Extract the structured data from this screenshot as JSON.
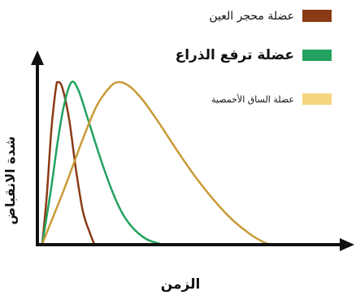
{
  "chart_data": {
    "type": "line",
    "xlabel": "الزمن",
    "ylabel": "شدة الانقباض",
    "x_ticks": [],
    "y_ticks": [],
    "xlim": [
      0,
      100
    ],
    "ylim": [
      0,
      100
    ],
    "grid": false,
    "legend_position": "top-right",
    "series": [
      {
        "name": "عضلة محجر العين",
        "color": "#8b3a16",
        "points": [
          [
            0,
            0
          ],
          [
            2,
            30
          ],
          [
            4,
            70
          ],
          [
            6,
            96
          ],
          [
            7,
            100
          ],
          [
            9,
            96
          ],
          [
            12,
            76
          ],
          [
            15,
            45
          ],
          [
            18,
            20
          ],
          [
            21,
            7
          ],
          [
            23,
            0
          ]
        ]
      },
      {
        "name": "عضلة ترفع الذراع",
        "color": "#22a25e",
        "points": [
          [
            0,
            0
          ],
          [
            4,
            35
          ],
          [
            7,
            65
          ],
          [
            10,
            88
          ],
          [
            13,
            100
          ],
          [
            16,
            95
          ],
          [
            20,
            78
          ],
          [
            25,
            56
          ],
          [
            30,
            36
          ],
          [
            35,
            20
          ],
          [
            40,
            10
          ],
          [
            46,
            3
          ],
          [
            52,
            0
          ]
        ]
      },
      {
        "name": "عضلة الساق الأخمصية",
        "color": "#c99a35",
        "points": [
          [
            0,
            0
          ],
          [
            10,
            35
          ],
          [
            18,
            65
          ],
          [
            24,
            85
          ],
          [
            30,
            97
          ],
          [
            34,
            100
          ],
          [
            39,
            97
          ],
          [
            45,
            88
          ],
          [
            52,
            74
          ],
          [
            60,
            57
          ],
          [
            68,
            41
          ],
          [
            76,
            27
          ],
          [
            84,
            15
          ],
          [
            92,
            6
          ],
          [
            98,
            1
          ],
          [
            100,
            0
          ]
        ]
      }
    ]
  }
}
